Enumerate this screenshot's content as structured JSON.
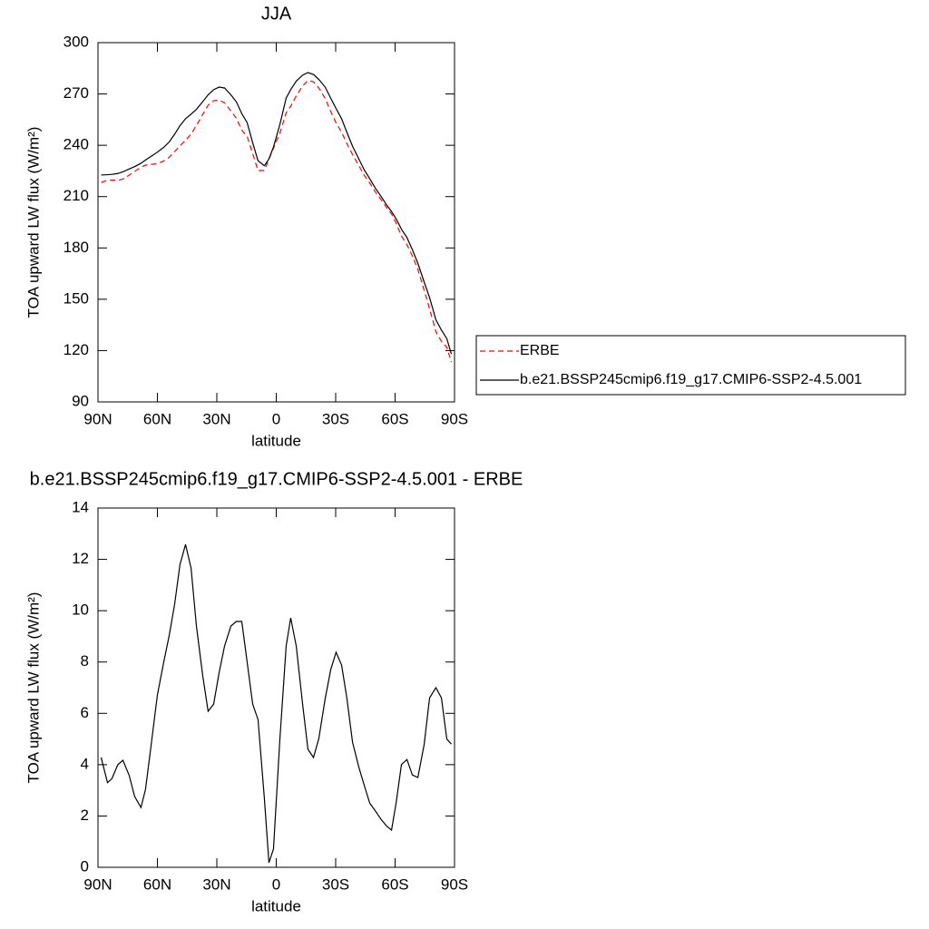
{
  "chart_data": [
    {
      "type": "line",
      "title": "JJA",
      "x_label": "latitude",
      "y_label": "TOA upward LW flux (W/m²)",
      "x": [
        88.4,
        85.2,
        83,
        80,
        77.4,
        74.2,
        71.5,
        68.3,
        66,
        63.2,
        60,
        56.8,
        54,
        51.3,
        48.6,
        45.8,
        43,
        40.3,
        37.1,
        34.4,
        31.6,
        28.9,
        26.1,
        22.9,
        20.2,
        17.4,
        14.7,
        11.9,
        9.2,
        6,
        3.7,
        1.4,
        -1.8,
        -5,
        -7.3,
        -10.1,
        -13.3,
        -16,
        -18.8,
        -21.5,
        -24.7,
        -27.5,
        -30.2,
        -33,
        -35.7,
        -38.5,
        -41.7,
        -44.4,
        -47.2,
        -50,
        -53.1,
        -55.8,
        -58.2,
        -60.5,
        -63.2,
        -66,
        -68.7,
        -71.5,
        -74.7,
        -77.4,
        -80.6,
        -83.4,
        -86.1,
        -88.4
      ],
      "series": [
        {
          "name": "ERBE",
          "color": "#ff0000",
          "dash": true,
          "values": [
            218.3,
            219.5,
            219.6,
            219.5,
            220.3,
            222.6,
            224.7,
            227.2,
            228.4,
            228.8,
            229.3,
            230.8,
            233.0,
            236.3,
            239.7,
            242.9,
            246.5,
            251.6,
            258.0,
            263.4,
            266.1,
            266.4,
            264.9,
            260.1,
            255.9,
            248.9,
            245.3,
            235.1,
            225.2,
            225.3,
            231.8,
            238.3,
            247.0,
            259.0,
            262.8,
            268.9,
            274.6,
            277.9,
            277.1,
            273.5,
            267.4,
            259.8,
            253.1,
            247.6,
            240.9,
            234.6,
            228.1,
            222.5,
            218.0,
            212.8,
            208.0,
            203.4,
            199.9,
            194.5,
            187.0,
            181.8,
            175.4,
            167.5,
            155.2,
            144.4,
            131.0,
            125.4,
            122.0,
            113.2
          ]
        },
        {
          "name": "b.e21.BSSP245cmip6.f19_g17.CMIP6-SSP2-4.5.001",
          "color": "#000000",
          "dash": false,
          "values": [
            222.6,
            222.8,
            223,
            223.5,
            224.5,
            226.2,
            227.5,
            229.5,
            231.4,
            233.5,
            236,
            238.8,
            242,
            246.5,
            251.5,
            255.5,
            258.2,
            261,
            265.5,
            269.5,
            272.5,
            274,
            273.5,
            269.5,
            265.5,
            258.5,
            253.3,
            241.5,
            231,
            228,
            232,
            239,
            252,
            267.6,
            272.5,
            277.5,
            281,
            282.5,
            281.4,
            278.5,
            274,
            267.5,
            261.5,
            255.5,
            247.5,
            239.5,
            232,
            225.7,
            220.5,
            215,
            209.8,
            205,
            201.3,
            197,
            191,
            186,
            179,
            171,
            160,
            151,
            138,
            132,
            127,
            118
          ]
        }
      ],
      "xlim": [
        90,
        -90
      ],
      "xticks": [
        {
          "value": 90,
          "label": "90N"
        },
        {
          "value": 60,
          "label": "60N"
        },
        {
          "value": 30,
          "label": "30N"
        },
        0,
        {
          "value": -30,
          "label": "30S"
        },
        {
          "value": -60,
          "label": "60S"
        },
        {
          "value": -90,
          "label": "90S"
        }
      ],
      "ylim": [
        90,
        300
      ],
      "yticks": [
        90,
        120,
        150,
        180,
        210,
        240,
        270,
        300
      ],
      "legend": "right"
    },
    {
      "type": "line",
      "title": "b.e21.BSSP245cmip6.f19_g17.CMIP6-SSP2-4.5.001 - ERBE",
      "x_label": "latitude",
      "y_label": "TOA upward LW flux (W/m²)",
      "x": [
        88.4,
        85.2,
        83,
        80,
        77.4,
        74.2,
        71.5,
        68.3,
        66,
        63.2,
        60,
        56.8,
        54,
        51.3,
        48.6,
        45.8,
        43,
        40.3,
        37.1,
        34.4,
        31.6,
        28.9,
        26.1,
        22.9,
        20.2,
        17.4,
        14.7,
        11.9,
        9.2,
        6,
        3.7,
        1.4,
        -1.8,
        -5,
        -7.3,
        -10.1,
        -13.3,
        -16,
        -18.8,
        -21.5,
        -24.7,
        -27.5,
        -30.2,
        -33,
        -35.7,
        -38.5,
        -41.7,
        -44.4,
        -47.2,
        -50,
        -53.1,
        -55.8,
        -58.2,
        -60.5,
        -63.2,
        -66,
        -68.7,
        -71.5,
        -74.7,
        -77.4,
        -80.6,
        -83.4,
        -86.1,
        -88.4
      ],
      "values": [
        4.28,
        3.3,
        3.45,
        4.0,
        4.17,
        3.57,
        2.76,
        2.33,
        3.04,
        4.74,
        6.72,
        8.0,
        9.05,
        10.25,
        11.8,
        12.58,
        11.66,
        9.4,
        7.46,
        6.08,
        6.36,
        7.56,
        8.62,
        9.4,
        9.58,
        9.58,
        8.0,
        6.36,
        5.76,
        2.69,
        0.18,
        0.71,
        4.95,
        8.62,
        9.72,
        8.62,
        6.36,
        4.6,
        4.28,
        5.02,
        6.57,
        7.7,
        8.38,
        7.88,
        6.57,
        4.88,
        3.9,
        3.2,
        2.5,
        2.2,
        1.85,
        1.6,
        1.45,
        2.5,
        4.0,
        4.2,
        3.6,
        3.5,
        4.8,
        6.6,
        7.0,
        6.6,
        5.0,
        4.8
      ],
      "color": "#000000",
      "xlim": [
        90,
        -90
      ],
      "xticks": [
        {
          "value": 90,
          "label": "90N"
        },
        {
          "value": 60,
          "label": "60N"
        },
        {
          "value": 30,
          "label": "30N"
        },
        0,
        {
          "value": -30,
          "label": "30S"
        },
        {
          "value": -60,
          "label": "60S"
        },
        {
          "value": -90,
          "label": "90S"
        }
      ],
      "ylim": [
        0,
        14
      ],
      "yticks": [
        0,
        2,
        4,
        6,
        8,
        10,
        12,
        14
      ]
    }
  ]
}
